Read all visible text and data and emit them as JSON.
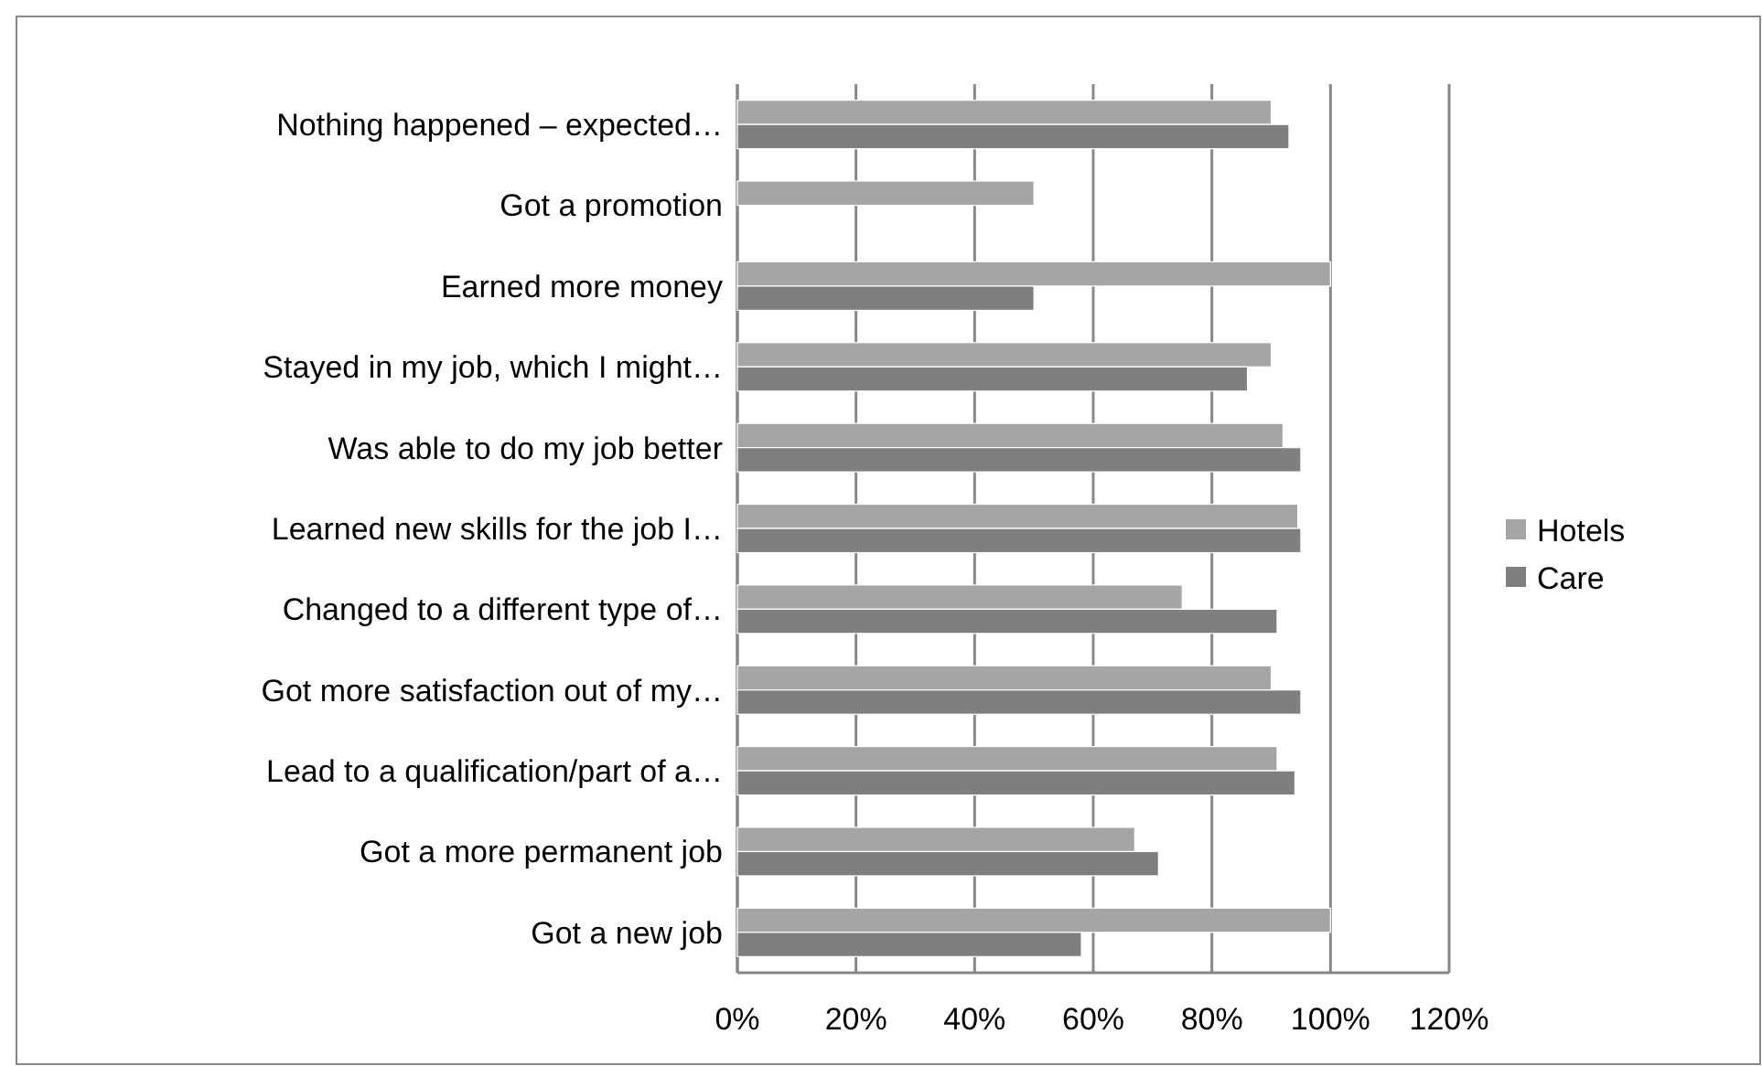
{
  "chart_data": {
    "type": "bar",
    "orientation": "horizontal",
    "categories": [
      "Nothing happened – expected…",
      "Got a promotion",
      "Earned more money",
      "Stayed in my job, which I might…",
      "Was able to do my job better",
      "Learned new skills for the job I…",
      "Changed to a different type of…",
      "Got more satisfaction out of my…",
      "Lead to a qualification/part of a…",
      "Got a more permanent job",
      "Got a new job"
    ],
    "series": [
      {
        "name": "Hotels",
        "color": "#a5a5a5",
        "values": [
          0.9,
          0.5,
          1.0,
          0.9,
          0.92,
          0.945,
          0.75,
          0.9,
          0.91,
          0.67,
          1.0
        ]
      },
      {
        "name": "Care",
        "color": "#7f7f7f",
        "values": [
          0.93,
          null,
          0.5,
          0.86,
          0.95,
          0.95,
          0.91,
          0.95,
          0.94,
          0.71,
          0.58
        ]
      }
    ],
    "xlim": [
      0,
      1.2
    ],
    "xticks": [
      {
        "value": 0,
        "label": "0%"
      },
      {
        "value": 0.2,
        "label": "20%"
      },
      {
        "value": 0.4,
        "label": "40%"
      },
      {
        "value": 0.6,
        "label": "60%"
      },
      {
        "value": 0.8,
        "label": "80%"
      },
      {
        "value": 1.0,
        "label": "100%"
      },
      {
        "value": 1.2,
        "label": "120%"
      }
    ],
    "grid": "x",
    "legend": "right"
  }
}
